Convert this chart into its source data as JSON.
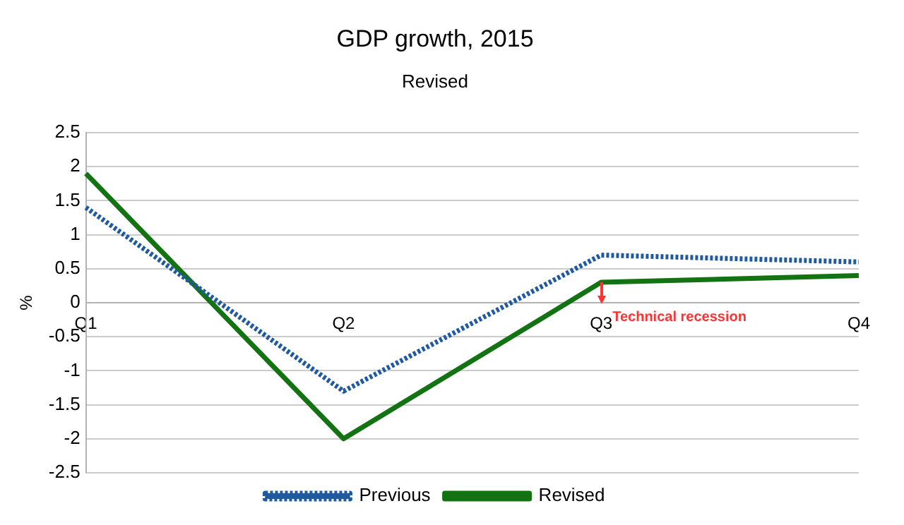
{
  "chart_data": {
    "type": "line",
    "title": "GDP growth, 2015",
    "subtitle": "Revised",
    "ylabel": "%",
    "categories": [
      "Q1",
      "Q2",
      "Q3",
      "Q4"
    ],
    "series": [
      {
        "name": "Previous",
        "color": "#1f5aa0",
        "values": [
          1.4,
          -1.3,
          0.7,
          0.6
        ],
        "line_style": "dotted"
      },
      {
        "name": "Revised",
        "color": "#137313",
        "values": [
          1.9,
          -2.0,
          0.3,
          0.4
        ],
        "line_style": "solid"
      }
    ],
    "ylim": [
      -2.5,
      2.5
    ],
    "yticks": [
      -2.5,
      -2,
      -1.5,
      -1,
      -0.5,
      0,
      0.5,
      1,
      1.5,
      2,
      2.5
    ],
    "grid": "y",
    "legend": "bottom",
    "marker": "none",
    "annotations": [
      {
        "text": "Technical recession",
        "x": "Q3",
        "y": 0.3
      }
    ]
  }
}
